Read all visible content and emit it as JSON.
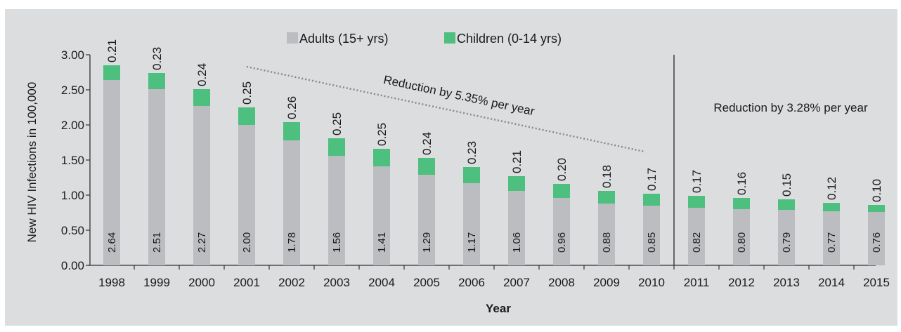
{
  "chart_data": {
    "type": "bar",
    "stacked": true,
    "categories": [
      "1998",
      "1999",
      "2000",
      "2001",
      "2002",
      "2003",
      "2004",
      "2005",
      "2006",
      "2007",
      "2008",
      "2009",
      "2010",
      "2011",
      "2012",
      "2013",
      "2014",
      "2015"
    ],
    "series": [
      {
        "name": "Adults (15+ yrs)",
        "color": "#bcbdc0",
        "values": [
          2.64,
          2.51,
          2.27,
          2.0,
          1.78,
          1.56,
          1.41,
          1.29,
          1.17,
          1.06,
          0.96,
          0.88,
          0.85,
          0.82,
          0.8,
          0.79,
          0.77,
          0.76
        ],
        "labels": [
          "2.64",
          "2.51",
          "2.27",
          "2.00",
          "1.78",
          "1.56",
          "1.41",
          "1.29",
          "1.17",
          "1.06",
          "0.96",
          "0.88",
          "0.85",
          "0.82",
          "0.80",
          "0.79",
          "0.77",
          "0.76"
        ]
      },
      {
        "name": "Children (0-14 yrs)",
        "color": "#4dbf7e",
        "values": [
          0.21,
          0.23,
          0.24,
          0.25,
          0.26,
          0.25,
          0.25,
          0.24,
          0.23,
          0.21,
          0.2,
          0.18,
          0.17,
          0.17,
          0.16,
          0.15,
          0.12,
          0.1
        ],
        "labels": [
          "0.21",
          "0.23",
          "0.24",
          "0.25",
          "0.26",
          "0.25",
          "0.25",
          "0.24",
          "0.23",
          "0.21",
          "0.20",
          "0.18",
          "0.17",
          "0.17",
          "0.16",
          "0.15",
          "0.12",
          "0.10"
        ]
      }
    ],
    "xlabel": "Year",
    "ylabel": "New HIV Infections in 100,000",
    "ylim": [
      0,
      3
    ],
    "yticks": [
      "0.00",
      "0.50",
      "1.00",
      "1.50",
      "2.00",
      "2.50",
      "3.00"
    ],
    "legend": "top-center",
    "grid": false,
    "background": "#dcdddf",
    "annotations": [
      {
        "text": "Reduction by 5.35% per year",
        "from": "2001",
        "to": "2010"
      },
      {
        "text": "Reduction by 3.28% per year",
        "from": "2011",
        "to": "2015"
      }
    ],
    "divider_after": "2010"
  }
}
